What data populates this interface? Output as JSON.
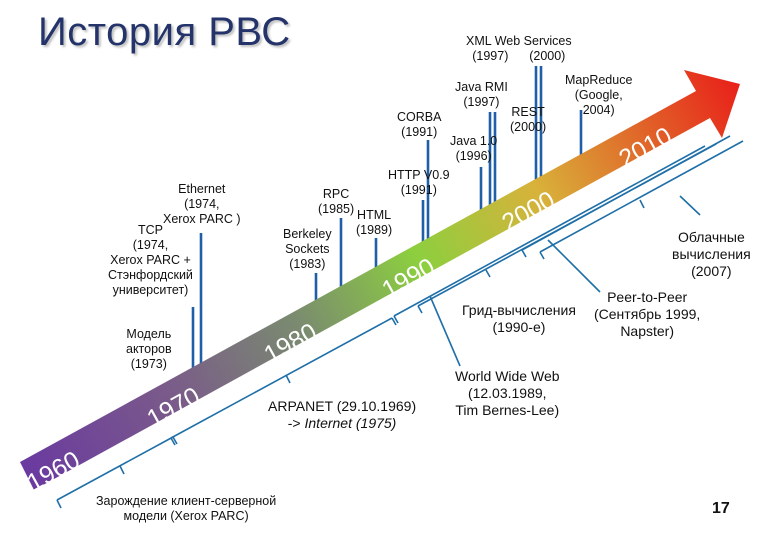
{
  "title": "История РВС",
  "page_number": "17",
  "decades": [
    "1960",
    "1970",
    "1980",
    "1990",
    "2000",
    "2010"
  ],
  "events": {
    "xml_ws": [
      "XML Web Services",
      "(1997)      (2000)"
    ],
    "java_rmi": [
      "Java RMI",
      "(1997)"
    ],
    "mapreduce": [
      "MapReduce",
      "(Google,",
      "2004)"
    ],
    "corba": [
      "CORBA",
      "(1991)"
    ],
    "rest": [
      "REST",
      "(2000)"
    ],
    "java10": [
      "Java 1.0",
      "(1996)"
    ],
    "http": [
      "HTTP V0.9",
      "(1991)"
    ],
    "ethernet": [
      "Ethernet",
      "(1974,",
      "Xerox PARC )"
    ],
    "rpc": [
      "RPC",
      "(1985)"
    ],
    "html": [
      "HTML",
      "(1989)"
    ],
    "berkeley": [
      "Berkeley",
      "Sockets",
      "(1983)"
    ],
    "tcp": [
      "TCP",
      "(1974,",
      "Xerox PARC +",
      "Стэнфордский",
      "университет)"
    ],
    "actors": [
      "Модель",
      "акторов",
      "(1973)"
    ]
  },
  "periods": {
    "cloud": [
      "Облачные",
      "вычисления",
      "(2007)"
    ],
    "p2p": [
      "Peer-to-Peer",
      "(Сентябрь 1999,",
      "Napster)"
    ],
    "grid": [
      "Грид-вычисления",
      "(1990-е)"
    ],
    "www": [
      "World Wide Web",
      "(12.03.1989,",
      "Tim Bernes-Lee)"
    ],
    "arpanet": [
      "ARPANET (29.10.1969)",
      "-> ",
      "Internet (1975)"
    ],
    "clientserver": [
      "Зарождение клиент-серверной",
      "модели (Xerox PARC)"
    ]
  },
  "colors": {
    "title": "#24346b",
    "connector": "#1f5fa8",
    "bracket": "#1f6fa8",
    "arrow_start": "#6a3aa0",
    "arrow_mid": "#8ccf3f",
    "arrow_end": "#e8211a"
  }
}
